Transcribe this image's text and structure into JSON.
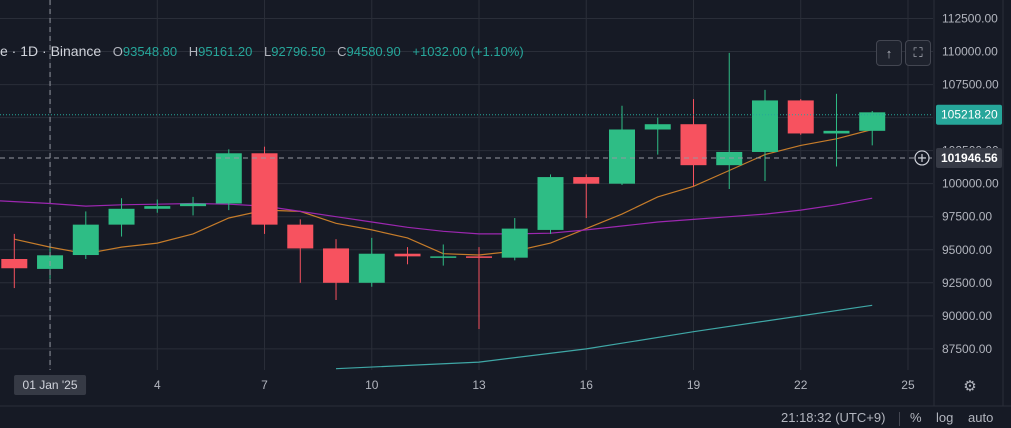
{
  "header": {
    "symbol": "e · 1D · Binance",
    "o_label": "O",
    "o_value": "93548.80",
    "h_label": "H",
    "h_value": "95161.20",
    "l_label": "L",
    "l_value": "92796.50",
    "c_label": "C",
    "c_value": "94580.90",
    "change": "+1032.00 (+1.10%)"
  },
  "buttons": {
    "up_icon": "arrow-up-icon",
    "fullscreen_icon": "fullscreen-icon"
  },
  "bottom_bar": {
    "time": "21:18:32 (UTC+9)",
    "percent": "%",
    "log": "log",
    "auto": "auto"
  },
  "colors": {
    "up": "#26a69a",
    "candle_up": "#2ebd85",
    "candle_down": "#f7525f",
    "ma_short": "#c67c2a",
    "ma_mid": "#9c27b0",
    "ma_long": "#3fa7a6",
    "background": "#161a25",
    "grid": "#2a2e39"
  },
  "chart_data": {
    "type": "candlestick",
    "y_axis_labels": [
      "112500.00",
      "110000.00",
      "107500.00",
      "105000.00",
      "102500.00",
      "100000.00",
      "97500.00",
      "95000.00",
      "92500.00",
      "90000.00",
      "87500.00"
    ],
    "ylim": [
      85900,
      113900
    ],
    "x_tick_labels": [
      {
        "label": "01 Jan '25",
        "day": 1,
        "highlight": true
      },
      {
        "label": "4",
        "day": 4
      },
      {
        "label": "7",
        "day": 7
      },
      {
        "label": "10",
        "day": 10
      },
      {
        "label": "13",
        "day": 13
      },
      {
        "label": "16",
        "day": 16
      },
      {
        "label": "19",
        "day": 19
      },
      {
        "label": "22",
        "day": 22
      },
      {
        "label": "25",
        "day": 25
      }
    ],
    "x_range": [
      -0.4,
      25.7
    ],
    "candles": [
      {
        "day": 0,
        "o": 94300,
        "h": 96200,
        "l": 92100,
        "c": 93600
      },
      {
        "day": 1,
        "o": 93550,
        "h": 95160,
        "l": 92800,
        "c": 94580
      },
      {
        "day": 2,
        "o": 94600,
        "h": 97900,
        "l": 94300,
        "c": 96900
      },
      {
        "day": 3,
        "o": 96900,
        "h": 98900,
        "l": 96000,
        "c": 98100
      },
      {
        "day": 4,
        "o": 98100,
        "h": 98800,
        "l": 97800,
        "c": 98300
      },
      {
        "day": 5,
        "o": 98300,
        "h": 99000,
        "l": 97600,
        "c": 98500
      },
      {
        "day": 6,
        "o": 98500,
        "h": 102600,
        "l": 98000,
        "c": 102300
      },
      {
        "day": 7,
        "o": 102300,
        "h": 102800,
        "l": 96200,
        "c": 96900
      },
      {
        "day": 8,
        "o": 96900,
        "h": 97300,
        "l": 92500,
        "c": 95100
      },
      {
        "day": 9,
        "o": 95100,
        "h": 95800,
        "l": 91200,
        "c": 92500
      },
      {
        "day": 10,
        "o": 92500,
        "h": 95900,
        "l": 92200,
        "c": 94700
      },
      {
        "day": 11,
        "o": 94700,
        "h": 95200,
        "l": 93900,
        "c": 94500
      },
      {
        "day": 12,
        "o": 94500,
        "h": 95400,
        "l": 93800,
        "c": 94500
      },
      {
        "day": 13,
        "o": 94500,
        "h": 95200,
        "l": 89000,
        "c": 94400
      },
      {
        "day": 14,
        "o": 94400,
        "h": 97400,
        "l": 94200,
        "c": 96600
      },
      {
        "day": 15,
        "o": 96500,
        "h": 100700,
        "l": 96200,
        "c": 100500
      },
      {
        "day": 16,
        "o": 100500,
        "h": 100700,
        "l": 97400,
        "c": 100000
      },
      {
        "day": 17,
        "o": 100000,
        "h": 105900,
        "l": 99900,
        "c": 104100
      },
      {
        "day": 18,
        "o": 104100,
        "h": 105000,
        "l": 102200,
        "c": 104500
      },
      {
        "day": 19,
        "o": 104500,
        "h": 106400,
        "l": 99800,
        "c": 101400
      },
      {
        "day": 20,
        "o": 101400,
        "h": 109900,
        "l": 99600,
        "c": 102400
      },
      {
        "day": 21,
        "o": 102400,
        "h": 107100,
        "l": 100200,
        "c": 106300
      },
      {
        "day": 22,
        "o": 106300,
        "h": 106400,
        "l": 103700,
        "c": 103800
      },
      {
        "day": 23,
        "o": 103800,
        "h": 106800,
        "l": 101300,
        "c": 104000
      },
      {
        "day": 24,
        "o": 104000,
        "h": 105500,
        "l": 102900,
        "c": 105400
      }
    ],
    "ma_series": [
      {
        "color": "#c67c2a",
        "points": [
          [
            0,
            95800
          ],
          [
            1,
            95200
          ],
          [
            2,
            94700
          ],
          [
            3,
            95200
          ],
          [
            4,
            95500
          ],
          [
            5,
            96200
          ],
          [
            6,
            97400
          ],
          [
            7,
            98000
          ],
          [
            8,
            97900
          ],
          [
            9,
            97000
          ],
          [
            10,
            96500
          ],
          [
            11,
            95900
          ],
          [
            12,
            94700
          ],
          [
            13,
            94600
          ],
          [
            14,
            94900
          ],
          [
            15,
            95500
          ],
          [
            16,
            96600
          ],
          [
            17,
            97700
          ],
          [
            18,
            99000
          ],
          [
            19,
            99800
          ],
          [
            20,
            101000
          ],
          [
            21,
            102200
          ],
          [
            22,
            102900
          ],
          [
            23,
            103400
          ],
          [
            24,
            104100
          ]
        ]
      },
      {
        "color": "#9c27b0",
        "points": [
          [
            -0.4,
            98700
          ],
          [
            1,
            98500
          ],
          [
            2,
            98300
          ],
          [
            3,
            98400
          ],
          [
            4,
            98450
          ],
          [
            5,
            98500
          ],
          [
            6,
            98450
          ],
          [
            7,
            98300
          ],
          [
            8,
            97900
          ],
          [
            9,
            97500
          ],
          [
            10,
            97100
          ],
          [
            11,
            96700
          ],
          [
            12,
            96400
          ],
          [
            13,
            96200
          ],
          [
            14,
            96200
          ],
          [
            15,
            96250
          ],
          [
            16,
            96500
          ],
          [
            17,
            96800
          ],
          [
            18,
            97100
          ],
          [
            19,
            97300
          ],
          [
            20,
            97500
          ],
          [
            21,
            97700
          ],
          [
            22,
            98000
          ],
          [
            23,
            98400
          ],
          [
            24,
            98900
          ]
        ]
      },
      {
        "color": "#3fa7a6",
        "points": [
          [
            9,
            86000
          ],
          [
            13,
            86500
          ],
          [
            16,
            87500
          ],
          [
            19,
            88800
          ],
          [
            21,
            89600
          ],
          [
            24,
            90800
          ]
        ]
      }
    ],
    "price_lines": [
      {
        "value": 105218.2,
        "label": "105218.20",
        "style": "dotted",
        "color": "#26a69a"
      },
      {
        "value": 101946.56,
        "label": "101946.56",
        "style": "dashed",
        "color": "#ffffff",
        "crosshair": true
      }
    ],
    "crosshair_day": 1
  }
}
